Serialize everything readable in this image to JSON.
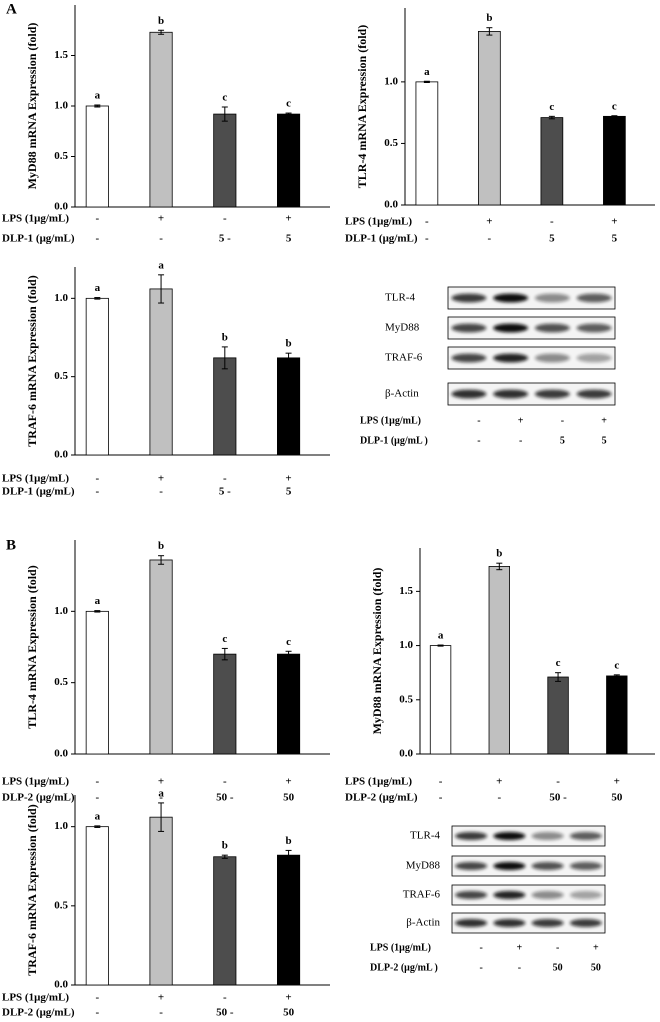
{
  "panels": [
    "A",
    "B"
  ],
  "chart_data": [
    {
      "type": "bar",
      "ylabel": "MyD88 mRNA Expression (fold)",
      "ylim": [
        0,
        2.0
      ],
      "yticks": [
        {
          "value": 0,
          "label": "0.0"
        },
        0.5,
        {
          "value": 1,
          "label": "1.0"
        },
        1.5
      ],
      "values": [
        1.0,
        1.73,
        0.92,
        0.92
      ],
      "errors": [
        0.01,
        0.02,
        0.07,
        0.01
      ],
      "annotations": [
        "a",
        "b",
        "c",
        "c"
      ],
      "colors": [
        "#ffffff",
        "#c0c0c0",
        "#4d4d4d",
        "#000000"
      ],
      "conditions": [
        {
          "label": "LPS (1μg/mL)",
          "values": [
            "-",
            "+",
            "-",
            "+"
          ]
        },
        {
          "label": "DLP-1 (μg/mL)",
          "values": [
            "-",
            "-",
            "5 -",
            "5"
          ]
        }
      ]
    },
    {
      "type": "bar",
      "ylabel": "TLR-4 mRNA Expression (fold)",
      "ylim": [
        0,
        1.6
      ],
      "yticks": [
        {
          "value": 0,
          "label": "0.0"
        },
        0.5,
        {
          "value": 1,
          "label": "1.0"
        }
      ],
      "values": [
        1.0,
        1.41,
        0.71,
        0.72
      ],
      "errors": [
        0.005,
        0.03,
        0.01,
        0.005
      ],
      "annotations": [
        "a",
        "b",
        "c",
        "c"
      ],
      "colors": [
        "#ffffff",
        "#c0c0c0",
        "#4d4d4d",
        "#000000"
      ],
      "conditions": [
        {
          "label": "LPS (1μg/mL)",
          "values": [
            "-",
            "+",
            "-",
            "+"
          ]
        },
        {
          "label": "DLP-1 (μg/mL)",
          "values": [
            "-",
            "-",
            "5",
            "5"
          ]
        }
      ]
    },
    {
      "type": "bar",
      "ylabel": "TRAF-6 mRNA Expression (fold)",
      "ylim": [
        0,
        1.2
      ],
      "yticks": [
        {
          "value": 0,
          "label": "0.0"
        },
        0.5,
        {
          "value": 1,
          "label": "1.0"
        }
      ],
      "values": [
        1.0,
        1.06,
        0.62,
        0.62
      ],
      "errors": [
        0.005,
        0.09,
        0.07,
        0.03
      ],
      "annotations": [
        "a",
        "a",
        "b",
        "b"
      ],
      "colors": [
        "#ffffff",
        "#c0c0c0",
        "#4d4d4d",
        "#000000"
      ],
      "conditions": [
        {
          "label": "LPS (1μg/mL)",
          "values": [
            "-",
            "+",
            "-",
            "+"
          ]
        },
        {
          "label": "DLP-1 (μg/mL)",
          "values": [
            "-",
            "-",
            "5 -",
            "5"
          ]
        }
      ]
    },
    {
      "type": "bar",
      "ylabel": "TLR-4 mRNA Expression (fold)",
      "ylim": [
        0,
        1.5
      ],
      "yticks": [
        {
          "value": 0,
          "label": "0.0"
        },
        0.5,
        {
          "value": 1,
          "label": "1.0"
        }
      ],
      "values": [
        1.0,
        1.36,
        0.7,
        0.7
      ],
      "errors": [
        0.005,
        0.03,
        0.04,
        0.02
      ],
      "annotations": [
        "a",
        "b",
        "c",
        "c"
      ],
      "colors": [
        "#ffffff",
        "#c0c0c0",
        "#4d4d4d",
        "#000000"
      ],
      "conditions": [
        {
          "label": "LPS (1μg/mL)",
          "values": [
            "-",
            "+",
            "-",
            "+"
          ]
        },
        {
          "label": "DLP-2 (μg/mL)",
          "values": [
            "-",
            "-",
            "50 -",
            "50"
          ]
        }
      ]
    },
    {
      "type": "bar",
      "ylabel": "MyD88 mRNA Expression (fold)",
      "ylim": [
        0,
        1.9
      ],
      "yticks": [
        {
          "value": 0,
          "label": "0.0"
        },
        0.5,
        {
          "value": 1,
          "label": "1.0"
        },
        1.5
      ],
      "values": [
        1.0,
        1.73,
        0.71,
        0.72
      ],
      "errors": [
        0.005,
        0.03,
        0.04,
        0.01
      ],
      "annotations": [
        "a",
        "b",
        "c",
        "c"
      ],
      "colors": [
        "#ffffff",
        "#c0c0c0",
        "#4d4d4d",
        "#000000"
      ],
      "conditions": [
        {
          "label": "LPS (1μg/mL)",
          "values": [
            "-",
            "+",
            "-",
            "+"
          ]
        },
        {
          "label": "DLP-2 (μg/mL)",
          "values": [
            "-",
            "-",
            "50 -",
            "50"
          ]
        }
      ]
    },
    {
      "type": "bar",
      "ylabel": "TRAF-6 mRNA Expression (fold)",
      "ylim": [
        0,
        1.2
      ],
      "yticks": [
        {
          "value": 0,
          "label": "0.0"
        },
        0.5,
        {
          "value": 1,
          "label": "1.0"
        }
      ],
      "values": [
        1.0,
        1.06,
        0.81,
        0.82
      ],
      "errors": [
        0.005,
        0.09,
        0.01,
        0.03
      ],
      "annotations": [
        "a",
        "a",
        "b",
        "b"
      ],
      "colors": [
        "#ffffff",
        "#c0c0c0",
        "#4d4d4d",
        "#000000"
      ],
      "conditions": [
        {
          "label": "LPS (1μg/mL)",
          "values": [
            "-",
            "+",
            "-",
            "+"
          ]
        },
        {
          "label": "DLP-2 (μg/mL)",
          "values": [
            "-",
            "-",
            "50 -",
            "50"
          ]
        }
      ]
    }
  ],
  "blots": [
    {
      "rows": [
        "TLR-4",
        "MyD88",
        "TRAF-6",
        "β-Actin"
      ],
      "conditions": [
        {
          "label": "LPS  (1μg/mL)",
          "values": [
            "-",
            "+",
            "-",
            "+"
          ]
        },
        {
          "label": "DLP-1 (μg/mL )",
          "values": [
            "-",
            "-",
            "5",
            "5"
          ]
        }
      ]
    },
    {
      "rows": [
        "TLR-4",
        "MyD88",
        "TRAF-6",
        "β-Actin"
      ],
      "conditions": [
        {
          "label": "LPS  (1μg/mL)",
          "values": [
            "-",
            "+",
            "-",
            "+"
          ]
        },
        {
          "label": "DLP-2 (μg/mL )",
          "values": [
            "-",
            "-",
            "50",
            "50"
          ]
        }
      ]
    }
  ]
}
